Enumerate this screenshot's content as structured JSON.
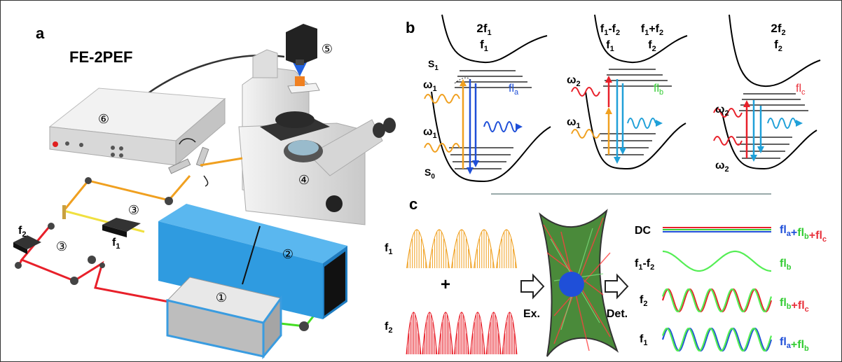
{
  "panels": {
    "a": {
      "letter": "a",
      "title": "FE-2PEF",
      "markers": [
        "①",
        "②",
        "③",
        "③",
        "④",
        "⑤",
        "⑥"
      ],
      "f1": "f",
      "f1_sub": "1",
      "f2": "f",
      "f2_sub": "2"
    },
    "b": {
      "letter": "b",
      "diagrams": [
        {
          "top1": "2f",
          "top1_sub": "1",
          "top2": "f",
          "top2_sub": "1",
          "omega_upper": "ω",
          "omega_upper_sub": "1",
          "omega_lower": "ω",
          "omega_lower_sub": "1",
          "fl": "fl",
          "fl_sub": "a",
          "fl_color": "#1f4fd8",
          "s1": "S",
          "s1_sub": "1",
          "s0": "S",
          "s0_sub": "0"
        },
        {
          "top_left": "f",
          "top_left_sub": "1",
          "top_left_op": "-f",
          "top_left_sub2": "2",
          "top_left2": "f",
          "top_left2_sub": "1",
          "top_right": "f",
          "top_right_sub": "1",
          "top_right_op": "+f",
          "top_right_sub2": "2",
          "top_right2": "f",
          "top_right2_sub": "2",
          "omega_upper": "ω",
          "omega_upper_sub": "2",
          "omega_lower": "ω",
          "omega_lower_sub": "1",
          "fl": "fl",
          "fl_sub": "b",
          "fl_color": "#33cc33"
        },
        {
          "top1": "2f",
          "top1_sub": "2",
          "top2": "f",
          "top2_sub": "2",
          "omega_upper": "ω",
          "omega_upper_sub": "2",
          "omega_lower": "ω",
          "omega_lower_sub": "2",
          "fl": "fl",
          "fl_sub": "c",
          "fl_color": "#e8323c"
        }
      ]
    },
    "c": {
      "letter": "c",
      "f1": "f",
      "f1_sub": "1",
      "plus": "+",
      "f2": "f",
      "f2_sub": "2",
      "ex": "Ex.",
      "det": "Det.",
      "rows": [
        {
          "label": "DC",
          "label_sub": "",
          "terms": [
            [
              "fl",
              "a",
              "#1f4fd8"
            ],
            [
              "+",
              null,
              "#1f4fd8"
            ],
            [
              "fl",
              "b",
              "#33cc33"
            ],
            [
              "+",
              null,
              "#e8323c"
            ],
            [
              "fl",
              "c",
              "#e8323c"
            ]
          ]
        },
        {
          "label": "f",
          "label_sub": "1",
          "label_op": "-f",
          "label_sub2": "2",
          "terms": [
            [
              "fl",
              "b",
              "#33cc33"
            ]
          ]
        },
        {
          "label": "f",
          "label_sub": "2",
          "terms": [
            [
              "fl",
              "b",
              "#33cc33"
            ],
            [
              "+",
              null,
              "#e8323c"
            ],
            [
              "fl",
              "c",
              "#e8323c"
            ]
          ]
        },
        {
          "label": "f",
          "label_sub": "1",
          "terms": [
            [
              "fl",
              "a",
              "#1f4fd8"
            ],
            [
              "+",
              null,
              "#33cc33"
            ],
            [
              "fl",
              "b",
              "#33cc33"
            ]
          ]
        }
      ]
    }
  },
  "colors": {
    "orange": "#f0a020",
    "red": "#e8202a",
    "green": "#44dd22",
    "yellow": "#f0e040",
    "blue_box": "#2f9be0",
    "blue": "#1f4fd8",
    "cyan": "#20a0d8"
  }
}
